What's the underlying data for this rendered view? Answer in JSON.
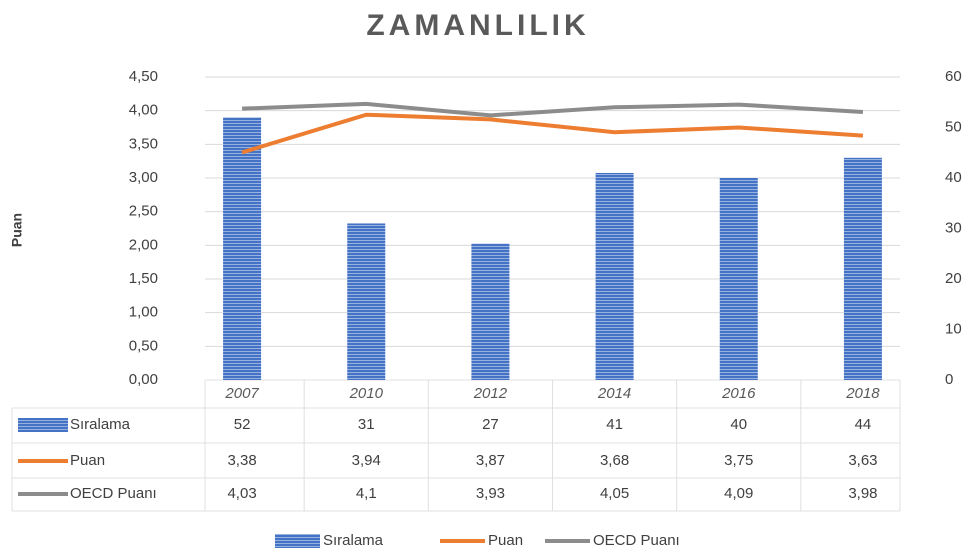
{
  "chart_data": {
    "type": "bar",
    "title": "ZAMANLILIK",
    "y_label": "Puan",
    "categories": [
      "2007",
      "2010",
      "2012",
      "2014",
      "2016",
      "2018"
    ],
    "series": [
      {
        "name": "Sıralama",
        "type": "bar",
        "axis": "y2",
        "color": "#4472c4",
        "values": [
          52,
          31,
          27,
          41,
          40,
          44
        ]
      },
      {
        "name": "Puan",
        "type": "line",
        "color": "#ed7d31",
        "values": [
          3.38,
          3.94,
          3.87,
          3.68,
          3.75,
          3.63
        ],
        "value_labels": [
          "3,38",
          "3,94",
          "3,87",
          "3,68",
          "3,75",
          "3,63"
        ]
      },
      {
        "name": "OECD Puanı",
        "type": "line",
        "color": "#8c8c8c",
        "values": [
          4.03,
          4.1,
          3.93,
          4.05,
          4.09,
          3.98
        ],
        "value_labels": [
          "4,03",
          "4,1",
          "3,93",
          "4,05",
          "4,09",
          "3,98"
        ]
      }
    ],
    "ylim": [
      0,
      4.5
    ],
    "yticks": [
      {
        "value": 0,
        "label": "0,00"
      },
      {
        "value": 0.5,
        "label": "0,50"
      },
      {
        "value": 1,
        "label": "1,00"
      },
      {
        "value": 1.5,
        "label": "1,50"
      },
      {
        "value": 2,
        "label": "2,00"
      },
      {
        "value": 2.5,
        "label": "2,50"
      },
      {
        "value": 3,
        "label": "3,00"
      },
      {
        "value": 3.5,
        "label": "3,50"
      },
      {
        "value": 4,
        "label": "4,00"
      },
      {
        "value": 4.5,
        "label": "4,50"
      }
    ],
    "y2lim": [
      0,
      60
    ],
    "y2ticks": [
      0,
      10,
      20,
      30,
      40,
      50,
      60
    ],
    "grid": true,
    "legend": "bottom"
  }
}
